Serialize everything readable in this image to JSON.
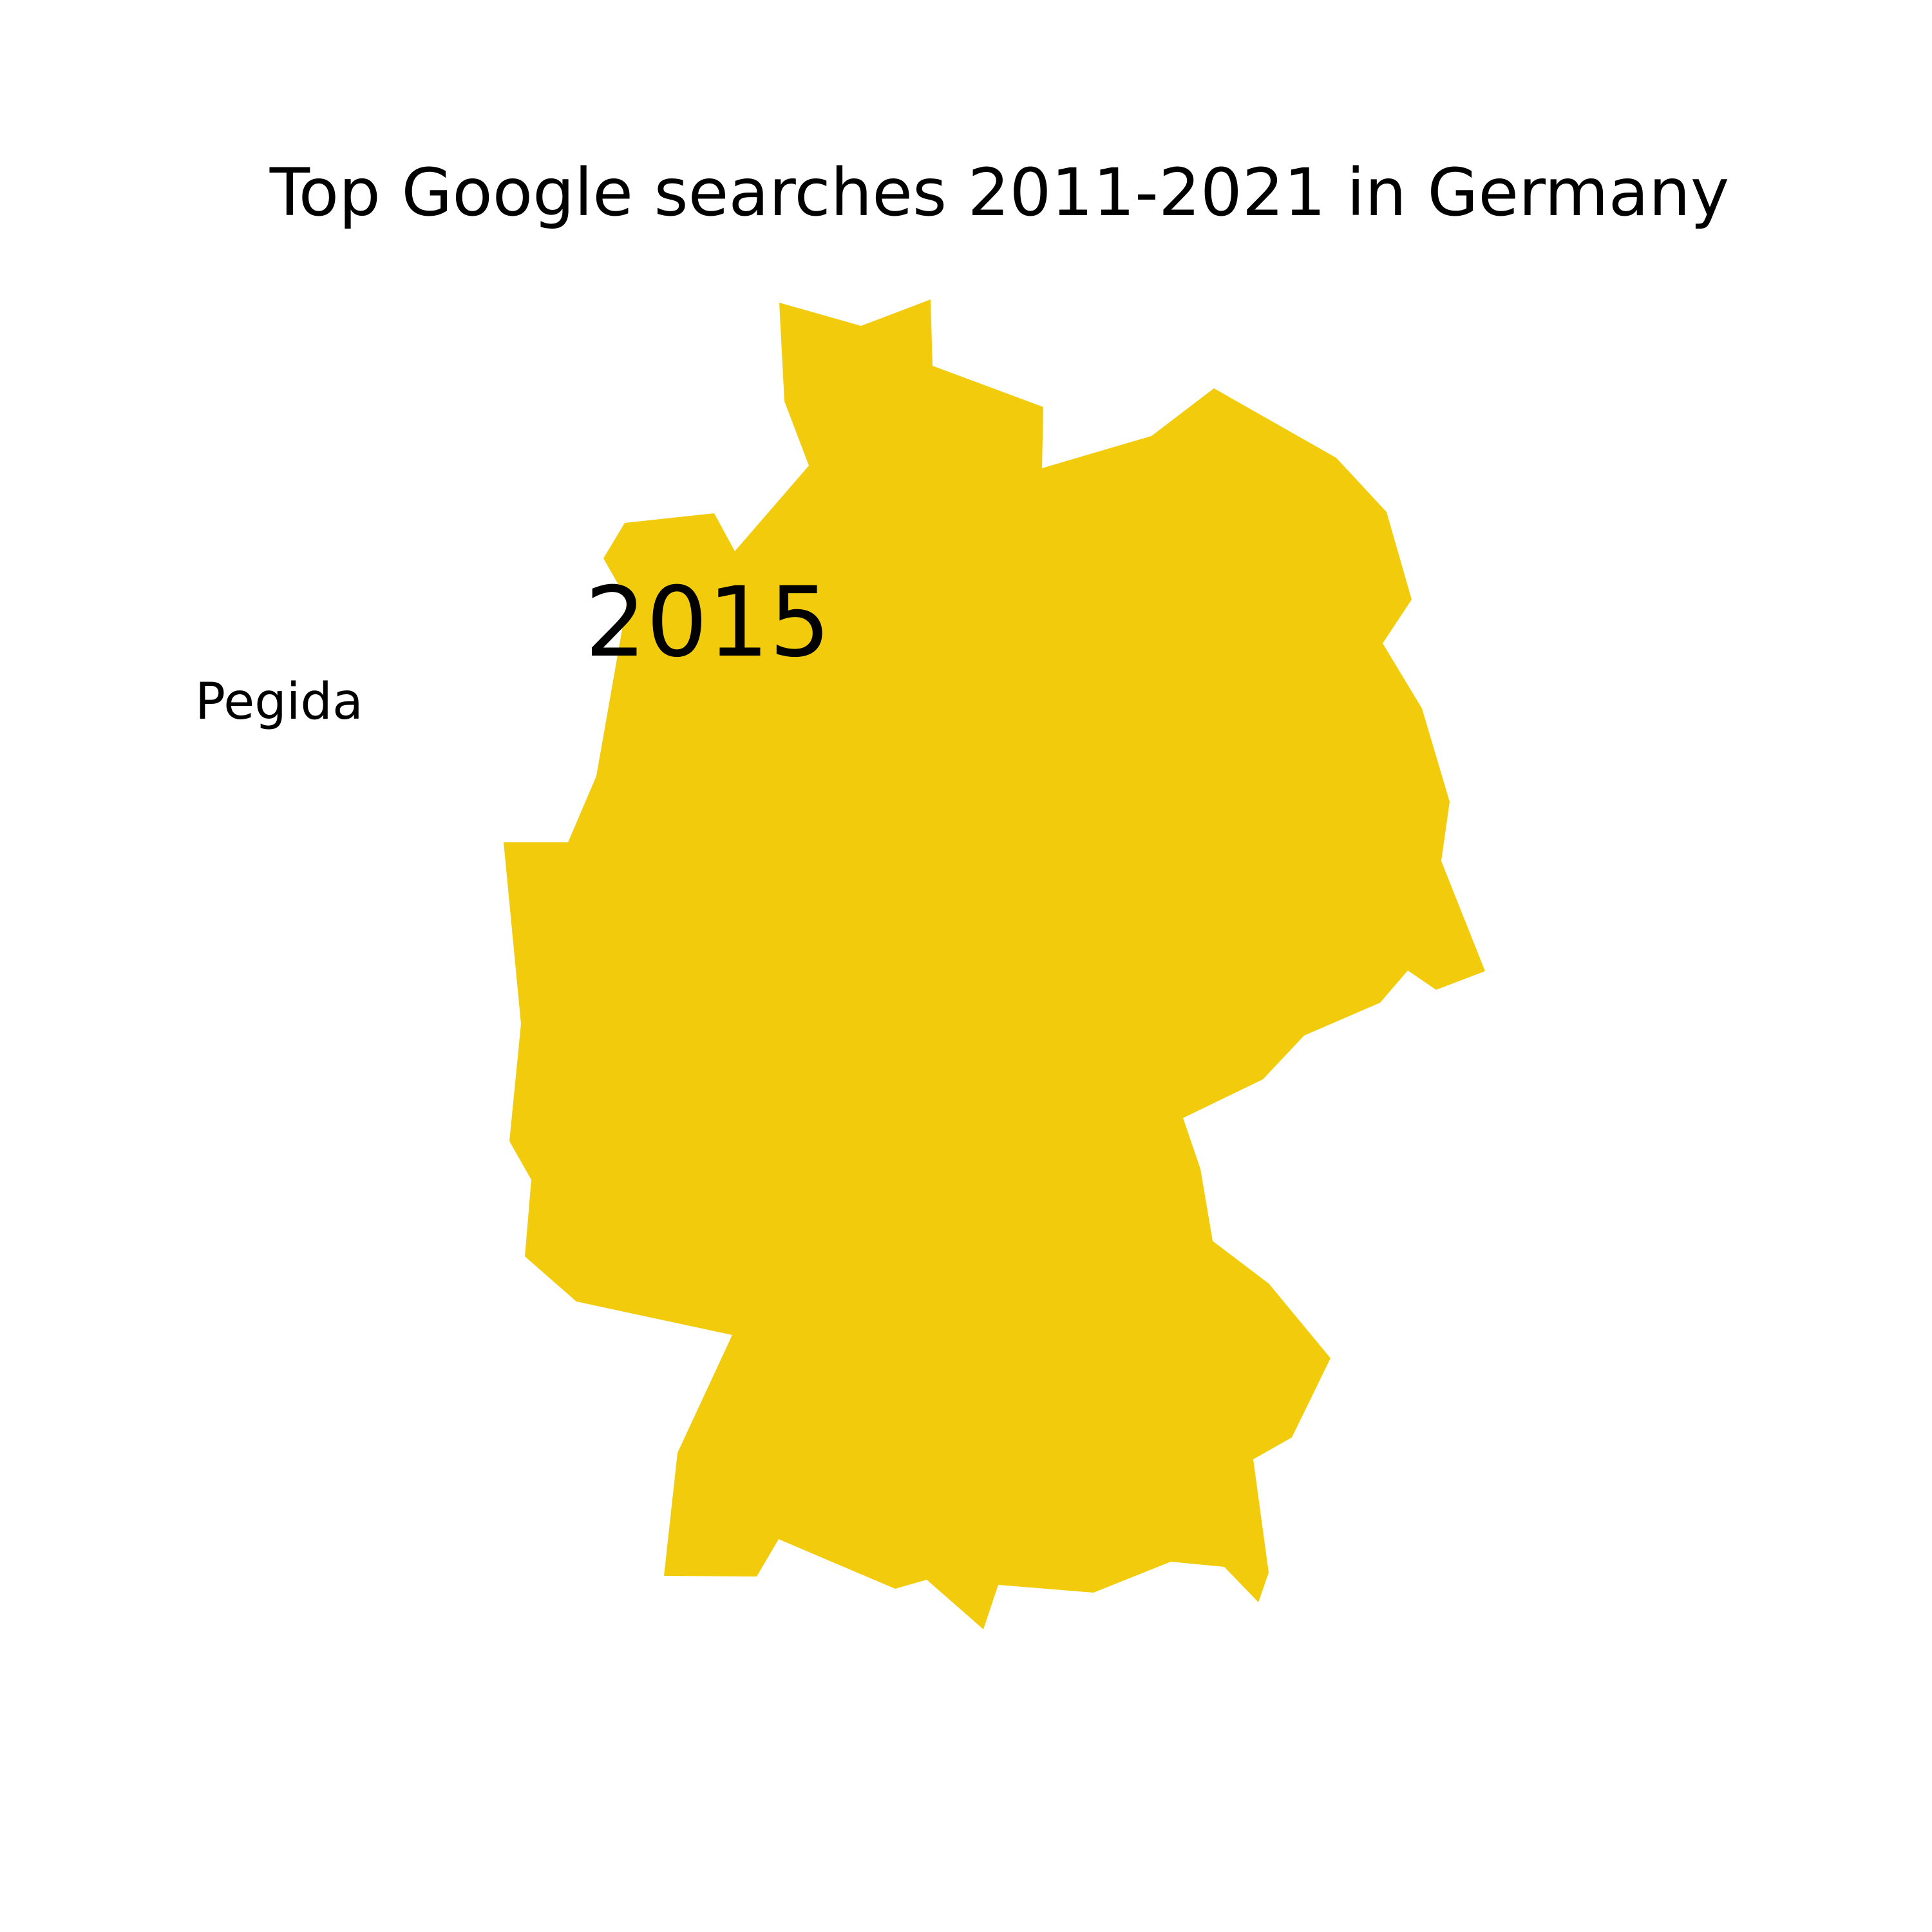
{
  "title": "Top Google searches 2011-2021 in Germany",
  "map": {
    "region": "Germany",
    "fill_color": "#F2CC0C",
    "background_color": "#FFFFFF"
  },
  "highlight": {
    "year": "2015",
    "search_term": "Pegida"
  }
}
